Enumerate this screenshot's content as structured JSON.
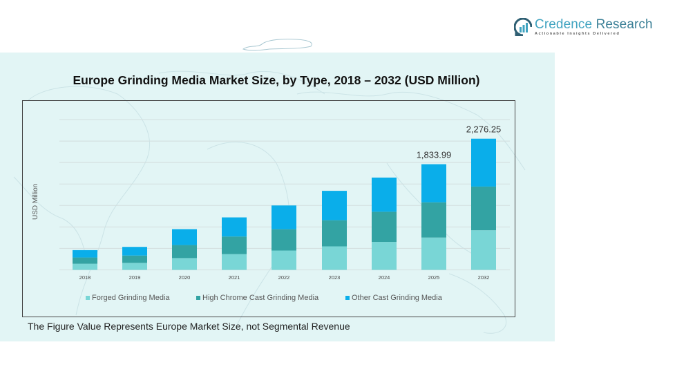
{
  "logo": {
    "name_part1": "Credence",
    "name_part2": " Research",
    "tagline": "Actionable Insights Delivered"
  },
  "footnote": "The Figure Value Represents Europe Market Size, not Segmental Revenue",
  "colors": {
    "forged": "#79d6d6",
    "high_chrome": "#33a3a3",
    "other_cast": "#0aaeea",
    "panel_bg": "#e2f5f5",
    "gridline": "#d3dede"
  },
  "chart_data": {
    "type": "bar",
    "stacked": true,
    "title": "Europe Grinding Media Market Size, by Type, 2018 – 2032 (USD Million)",
    "xlabel": "",
    "ylabel": "USD Million",
    "ylim": [
      0,
      2500
    ],
    "grid": true,
    "legend_position": "bottom",
    "categories": [
      "2018",
      "2019",
      "2020",
      "2021",
      "2022",
      "2023",
      "2024",
      "2025",
      "2032"
    ],
    "series": [
      {
        "name": "Forged Grinding Media",
        "color": "#79d6d6",
        "values": [
          106,
          122,
          205,
          273,
          335,
          408,
          485,
          561.13,
          687.6
        ]
      },
      {
        "name": "High Chrome Cast Grinding Media",
        "color": "#33a3a3",
        "values": [
          109,
          127,
          226,
          306,
          371,
          454,
          524,
          611.51,
          758.35
        ]
      },
      {
        "name": "Other Cast Grinding Media",
        "color": "#0aaeea",
        "values": [
          128,
          150,
          276,
          332,
          412,
          510,
          593,
          661.35,
          830.3
        ]
      }
    ],
    "annotations": [
      {
        "category": "2025",
        "text": "1,833.99"
      },
      {
        "category": "2032",
        "text": "2,276.25"
      }
    ]
  }
}
